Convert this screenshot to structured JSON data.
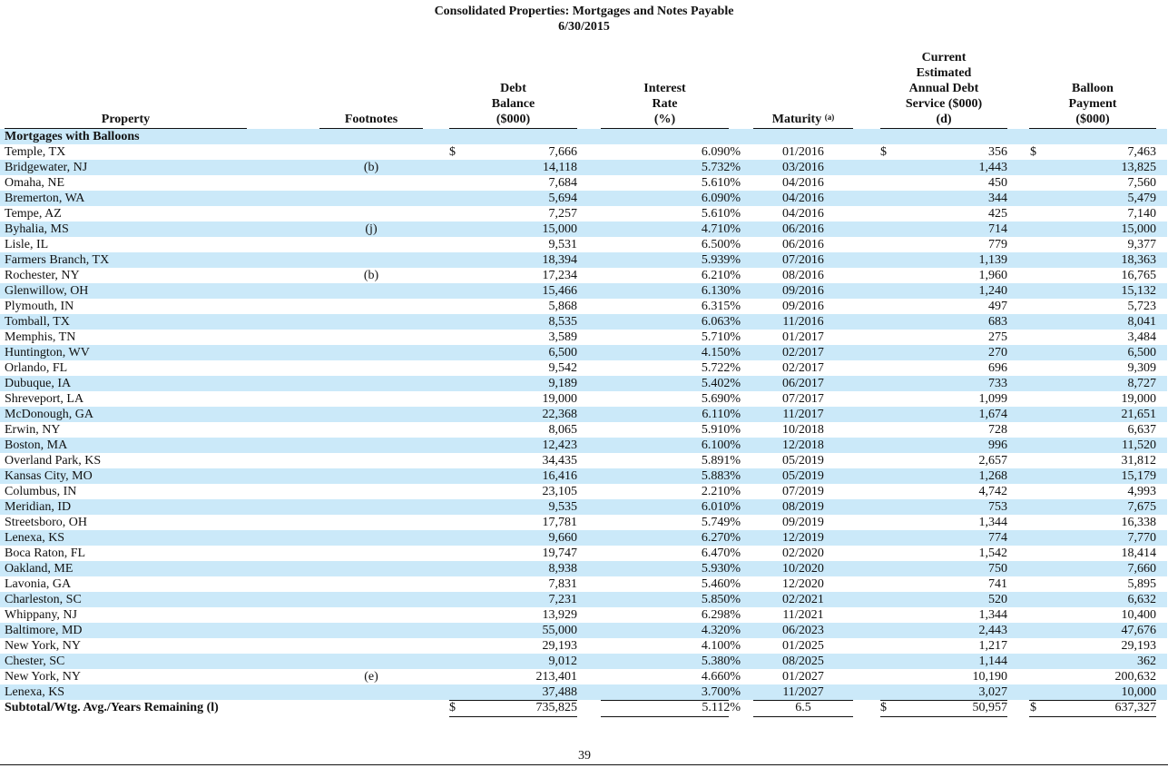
{
  "header": {
    "title": "Consolidated Properties: Mortgages and Notes Payable",
    "date": "6/30/2015"
  },
  "columns": {
    "property": "Property",
    "footnotes": "Footnotes",
    "debt_balance": [
      "Debt",
      "Balance",
      "($000)"
    ],
    "interest_rate": [
      "Interest",
      "Rate",
      "(%)"
    ],
    "maturity": "Maturity",
    "maturity_note": "(a)",
    "debt_service": [
      "Current",
      "Estimated",
      "Annual Debt",
      "Service ($000)",
      "(d)"
    ],
    "balloon": [
      "Balloon",
      "Payment",
      "($000)"
    ]
  },
  "section_label": "Mortgages with Balloons",
  "currency_symbol": "$",
  "rows": [
    {
      "property": "Temple, TX",
      "footnote": "",
      "debt": "7,666",
      "rate": "6.090%",
      "maturity": "01/2016",
      "service": "356",
      "balloon": "7,463"
    },
    {
      "property": "Bridgewater, NJ",
      "footnote": "(b)",
      "debt": "14,118",
      "rate": "5.732%",
      "maturity": "03/2016",
      "service": "1,443",
      "balloon": "13,825"
    },
    {
      "property": "Omaha, NE",
      "footnote": "",
      "debt": "7,684",
      "rate": "5.610%",
      "maturity": "04/2016",
      "service": "450",
      "balloon": "7,560"
    },
    {
      "property": "Bremerton, WA",
      "footnote": "",
      "debt": "5,694",
      "rate": "6.090%",
      "maturity": "04/2016",
      "service": "344",
      "balloon": "5,479"
    },
    {
      "property": "Tempe, AZ",
      "footnote": "",
      "debt": "7,257",
      "rate": "5.610%",
      "maturity": "04/2016",
      "service": "425",
      "balloon": "7,140"
    },
    {
      "property": "Byhalia, MS",
      "footnote": "(j)",
      "debt": "15,000",
      "rate": "4.710%",
      "maturity": "06/2016",
      "service": "714",
      "balloon": "15,000"
    },
    {
      "property": "Lisle, IL",
      "footnote": "",
      "debt": "9,531",
      "rate": "6.500%",
      "maturity": "06/2016",
      "service": "779",
      "balloon": "9,377"
    },
    {
      "property": "Farmers Branch, TX",
      "footnote": "",
      "debt": "18,394",
      "rate": "5.939%",
      "maturity": "07/2016",
      "service": "1,139",
      "balloon": "18,363"
    },
    {
      "property": "Rochester, NY",
      "footnote": "(b)",
      "debt": "17,234",
      "rate": "6.210%",
      "maturity": "08/2016",
      "service": "1,960",
      "balloon": "16,765"
    },
    {
      "property": "Glenwillow, OH",
      "footnote": "",
      "debt": "15,466",
      "rate": "6.130%",
      "maturity": "09/2016",
      "service": "1,240",
      "balloon": "15,132"
    },
    {
      "property": "Plymouth, IN",
      "footnote": "",
      "debt": "5,868",
      "rate": "6.315%",
      "maturity": "09/2016",
      "service": "497",
      "balloon": "5,723"
    },
    {
      "property": "Tomball, TX",
      "footnote": "",
      "debt": "8,535",
      "rate": "6.063%",
      "maturity": "11/2016",
      "service": "683",
      "balloon": "8,041"
    },
    {
      "property": "Memphis, TN",
      "footnote": "",
      "debt": "3,589",
      "rate": "5.710%",
      "maturity": "01/2017",
      "service": "275",
      "balloon": "3,484"
    },
    {
      "property": "Huntington, WV",
      "footnote": "",
      "debt": "6,500",
      "rate": "4.150%",
      "maturity": "02/2017",
      "service": "270",
      "balloon": "6,500"
    },
    {
      "property": "Orlando, FL",
      "footnote": "",
      "debt": "9,542",
      "rate": "5.722%",
      "maturity": "02/2017",
      "service": "696",
      "balloon": "9,309"
    },
    {
      "property": "Dubuque, IA",
      "footnote": "",
      "debt": "9,189",
      "rate": "5.402%",
      "maturity": "06/2017",
      "service": "733",
      "balloon": "8,727"
    },
    {
      "property": "Shreveport, LA",
      "footnote": "",
      "debt": "19,000",
      "rate": "5.690%",
      "maturity": "07/2017",
      "service": "1,099",
      "balloon": "19,000"
    },
    {
      "property": "McDonough, GA",
      "footnote": "",
      "debt": "22,368",
      "rate": "6.110%",
      "maturity": "11/2017",
      "service": "1,674",
      "balloon": "21,651"
    },
    {
      "property": "Erwin, NY",
      "footnote": "",
      "debt": "8,065",
      "rate": "5.910%",
      "maturity": "10/2018",
      "service": "728",
      "balloon": "6,637"
    },
    {
      "property": "Boston, MA",
      "footnote": "",
      "debt": "12,423",
      "rate": "6.100%",
      "maturity": "12/2018",
      "service": "996",
      "balloon": "11,520"
    },
    {
      "property": "Overland Park, KS",
      "footnote": "",
      "debt": "34,435",
      "rate": "5.891%",
      "maturity": "05/2019",
      "service": "2,657",
      "balloon": "31,812"
    },
    {
      "property": "Kansas City, MO",
      "footnote": "",
      "debt": "16,416",
      "rate": "5.883%",
      "maturity": "05/2019",
      "service": "1,268",
      "balloon": "15,179"
    },
    {
      "property": "Columbus, IN",
      "footnote": "",
      "debt": "23,105",
      "rate": "2.210%",
      "maturity": "07/2019",
      "service": "4,742",
      "balloon": "4,993"
    },
    {
      "property": "Meridian, ID",
      "footnote": "",
      "debt": "9,535",
      "rate": "6.010%",
      "maturity": "08/2019",
      "service": "753",
      "balloon": "7,675"
    },
    {
      "property": "Streetsboro, OH",
      "footnote": "",
      "debt": "17,781",
      "rate": "5.749%",
      "maturity": "09/2019",
      "service": "1,344",
      "balloon": "16,338"
    },
    {
      "property": "Lenexa, KS",
      "footnote": "",
      "debt": "9,660",
      "rate": "6.270%",
      "maturity": "12/2019",
      "service": "774",
      "balloon": "7,770"
    },
    {
      "property": "Boca Raton, FL",
      "footnote": "",
      "debt": "19,747",
      "rate": "6.470%",
      "maturity": "02/2020",
      "service": "1,542",
      "balloon": "18,414"
    },
    {
      "property": "Oakland, ME",
      "footnote": "",
      "debt": "8,938",
      "rate": "5.930%",
      "maturity": "10/2020",
      "service": "750",
      "balloon": "7,660"
    },
    {
      "property": "Lavonia, GA",
      "footnote": "",
      "debt": "7,831",
      "rate": "5.460%",
      "maturity": "12/2020",
      "service": "741",
      "balloon": "5,895"
    },
    {
      "property": "Charleston, SC",
      "footnote": "",
      "debt": "7,231",
      "rate": "5.850%",
      "maturity": "02/2021",
      "service": "520",
      "balloon": "6,632"
    },
    {
      "property": "Whippany, NJ",
      "footnote": "",
      "debt": "13,929",
      "rate": "6.298%",
      "maturity": "11/2021",
      "service": "1,344",
      "balloon": "10,400"
    },
    {
      "property": "Baltimore, MD",
      "footnote": "",
      "debt": "55,000",
      "rate": "4.320%",
      "maturity": "06/2023",
      "service": "2,443",
      "balloon": "47,676"
    },
    {
      "property": "New York, NY",
      "footnote": "",
      "debt": "29,193",
      "rate": "4.100%",
      "maturity": "01/2025",
      "service": "1,217",
      "balloon": "29,193"
    },
    {
      "property": "Chester, SC",
      "footnote": "",
      "debt": "9,012",
      "rate": "5.380%",
      "maturity": "08/2025",
      "service": "1,144",
      "balloon": "362"
    },
    {
      "property": "New York, NY",
      "footnote": "(e)",
      "debt": "213,401",
      "rate": "4.660%",
      "maturity": "01/2027",
      "service": "10,190",
      "balloon": "200,632"
    },
    {
      "property": "Lenexa, KS",
      "footnote": "",
      "debt": "37,488",
      "rate": "3.700%",
      "maturity": "11/2027",
      "service": "3,027",
      "balloon": "10,000"
    }
  ],
  "subtotal": {
    "label": "Subtotal/Wtg. Avg./Years Remaining (l)",
    "debt": "735,825",
    "rate": "5.112%",
    "maturity": "6.5",
    "service": "50,957",
    "balloon": "637,327"
  },
  "page_number": "39",
  "colors": {
    "stripe": "#cbe9f9",
    "text": "#111111"
  }
}
